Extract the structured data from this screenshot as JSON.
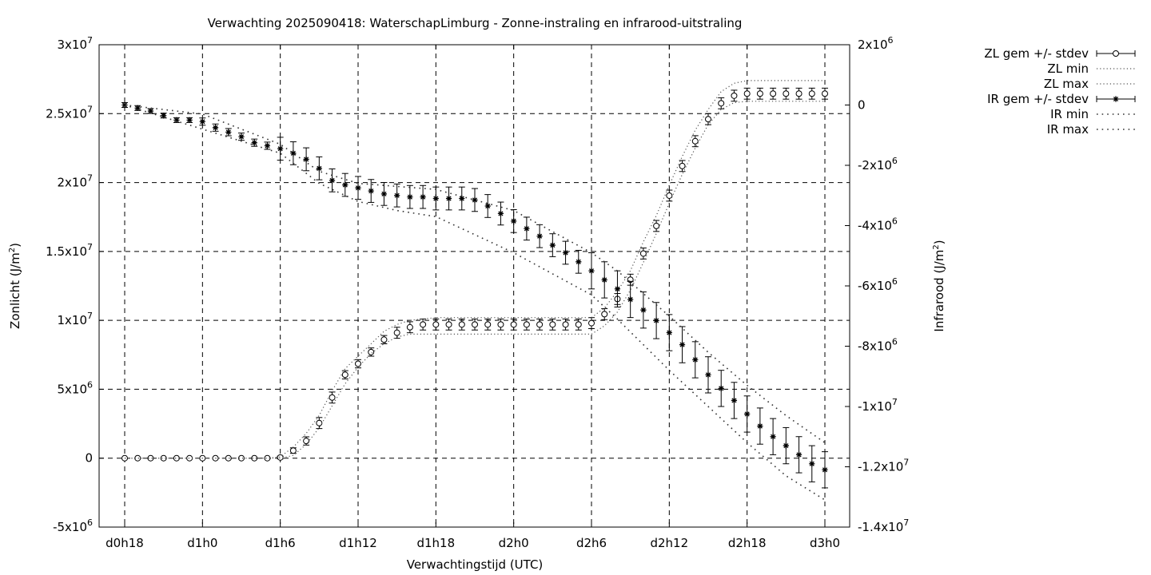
{
  "chart_data": {
    "type": "line",
    "title": "Verwachting 2025090418: WaterschapLimburg - Zonne-instraling en infrarood-uitstraling",
    "xlabel": "Verwachtingstijd (UTC)",
    "ylabel": "Zonlicht (J/m²)",
    "ylabel_main": "Zonlicht (J/m",
    "y2label": "Infrarood (J/m²)",
    "y2label_main": "Infrarood (J/m",
    "unit_sup": "2",
    "unit_close": ")",
    "xlim": [
      0,
      54
    ],
    "ylim": [
      -5000000,
      30000000
    ],
    "y2lim": [
      -14000000,
      2000000
    ],
    "grid": true,
    "legend_position": "outside-top-right",
    "x_ticks": [
      {
        "x": 0,
        "label": "d0h18"
      },
      {
        "x": 6,
        "label": "d1h0"
      },
      {
        "x": 12,
        "label": "d1h6"
      },
      {
        "x": 18,
        "label": "d1h12"
      },
      {
        "x": 24,
        "label": "d1h18"
      },
      {
        "x": 30,
        "label": "d2h0"
      },
      {
        "x": 36,
        "label": "d2h6"
      },
      {
        "x": 42,
        "label": "d2h12"
      },
      {
        "x": 48,
        "label": "d2h18"
      },
      {
        "x": 54,
        "label": "d3h0"
      }
    ],
    "y_ticks": [
      {
        "v": 30000000,
        "base": "3x10",
        "exp": "7"
      },
      {
        "v": 25000000,
        "base": "2.5x10",
        "exp": "7"
      },
      {
        "v": 20000000,
        "base": "2x10",
        "exp": "7"
      },
      {
        "v": 15000000,
        "base": "1.5x10",
        "exp": "7"
      },
      {
        "v": 10000000,
        "base": "1x10",
        "exp": "7"
      },
      {
        "v": 5000000,
        "base": "5x10",
        "exp": "6"
      },
      {
        "v": 0,
        "base": "0",
        "exp": ""
      },
      {
        "v": -5000000,
        "base": "-5x10",
        "exp": "6"
      }
    ],
    "y2_ticks": [
      {
        "v": 2000000,
        "base": "2x10",
        "exp": "6"
      },
      {
        "v": 0,
        "base": "0",
        "exp": ""
      },
      {
        "v": -2000000,
        "base": "-2x10",
        "exp": "6"
      },
      {
        "v": -4000000,
        "base": "-4x10",
        "exp": "6"
      },
      {
        "v": -6000000,
        "base": "-6x10",
        "exp": "6"
      },
      {
        "v": -8000000,
        "base": "-8x10",
        "exp": "6"
      },
      {
        "v": -10000000,
        "base": "-1x10",
        "exp": "7"
      },
      {
        "v": -12000000,
        "base": "-1.2x10",
        "exp": "7"
      },
      {
        "v": -14000000,
        "base": "-1.4x10",
        "exp": "7"
      }
    ],
    "series": [
      {
        "name": "ZL gem +/- stdev",
        "axis": "y",
        "marker": "circle",
        "x": [
          0,
          1,
          2,
          3,
          4,
          5,
          6,
          7,
          8,
          9,
          10,
          11,
          12,
          13,
          14,
          15,
          16,
          17,
          18,
          19,
          20,
          21,
          22,
          23,
          24,
          25,
          26,
          27,
          28,
          29,
          30,
          31,
          32,
          33,
          34,
          35,
          36,
          37,
          38,
          39,
          40,
          41,
          42,
          43,
          44,
          45,
          46,
          47,
          48,
          49,
          50,
          51,
          52,
          53,
          54
        ],
        "y": [
          0,
          0,
          0,
          0,
          0,
          0,
          0,
          0,
          0,
          0,
          0,
          0,
          50000,
          550000,
          1250000,
          2550000,
          4400000,
          6050000,
          6850000,
          7700000,
          8600000,
          9100000,
          9500000,
          9700000,
          9700000,
          9700000,
          9700000,
          9700000,
          9700000,
          9700000,
          9700000,
          9700000,
          9700000,
          9700000,
          9700000,
          9700000,
          9800000,
          10450000,
          11550000,
          12950000,
          14850000,
          16850000,
          19050000,
          21200000,
          23000000,
          24600000,
          25750000,
          26300000,
          26450000,
          26450000,
          26450000,
          26450000,
          26450000,
          26450000,
          26450000
        ],
        "stdev": [
          0,
          0,
          0,
          0,
          0,
          0,
          0,
          0,
          0,
          0,
          0,
          0,
          100000,
          200000,
          300000,
          400000,
          400000,
          300000,
          300000,
          300000,
          300000,
          400000,
          400000,
          400000,
          400000,
          400000,
          400000,
          400000,
          400000,
          400000,
          400000,
          400000,
          400000,
          400000,
          400000,
          400000,
          400000,
          400000,
          400000,
          400000,
          400000,
          400000,
          400000,
          400000,
          400000,
          400000,
          400000,
          400000,
          400000,
          400000,
          400000,
          400000,
          400000,
          400000,
          400000
        ]
      },
      {
        "name": "ZL min",
        "axis": "y",
        "style": "dotted",
        "x": [
          0,
          6,
          11,
          12,
          13,
          14,
          15,
          16,
          17,
          18,
          19,
          20,
          21,
          22,
          24,
          30,
          36,
          37,
          38,
          39,
          40,
          41,
          42,
          43,
          44,
          45,
          46,
          47,
          48,
          54
        ],
        "y": [
          0,
          0,
          0,
          0,
          200000,
          1000000,
          2200000,
          3800000,
          5400000,
          6600000,
          7600000,
          8300000,
          8800000,
          9000000,
          9000000,
          9000000,
          9000000,
          9600000,
          10600000,
          12200000,
          14200000,
          16300000,
          18500000,
          20600000,
          22500000,
          24200000,
          25300000,
          25800000,
          25900000,
          25900000
        ]
      },
      {
        "name": "ZL max",
        "axis": "y",
        "style": "dotted",
        "x": [
          0,
          6,
          11,
          12,
          13,
          14,
          15,
          16,
          17,
          18,
          19,
          20,
          21,
          22,
          24,
          30,
          36,
          37,
          38,
          39,
          40,
          41,
          42,
          43,
          44,
          45,
          46,
          47,
          48,
          54
        ],
        "y": [
          0,
          0,
          0,
          100000,
          800000,
          1800000,
          3100000,
          4900000,
          6500000,
          7400000,
          8300000,
          9200000,
          9700000,
          10000000,
          10200000,
          10200000,
          10200000,
          10900000,
          12100000,
          13600000,
          15700000,
          17600000,
          19800000,
          21900000,
          23800000,
          25300000,
          26600000,
          27200000,
          27400000,
          27400000
        ]
      },
      {
        "name": "IR gem +/- stdev",
        "axis": "y2",
        "marker": "star",
        "x": [
          0,
          1,
          2,
          3,
          4,
          5,
          6,
          7,
          8,
          9,
          10,
          11,
          12,
          13,
          14,
          15,
          16,
          17,
          18,
          19,
          20,
          21,
          22,
          23,
          24,
          25,
          26,
          27,
          28,
          29,
          30,
          31,
          32,
          33,
          34,
          35,
          36,
          37,
          38,
          39,
          40,
          41,
          42,
          43,
          44,
          45,
          46,
          47,
          48,
          49,
          50,
          51,
          52,
          53,
          54
        ],
        "y": [
          0,
          -100000,
          -200000,
          -350000,
          -500000,
          -500000,
          -550000,
          -750000,
          -900000,
          -1050000,
          -1250000,
          -1350000,
          -1450000,
          -1600000,
          -1800000,
          -2100000,
          -2500000,
          -2650000,
          -2750000,
          -2850000,
          -2950000,
          -3000000,
          -3050000,
          -3050000,
          -3100000,
          -3100000,
          -3100000,
          -3150000,
          -3350000,
          -3600000,
          -3850000,
          -4100000,
          -4350000,
          -4650000,
          -4900000,
          -5200000,
          -5500000,
          -5800000,
          -6100000,
          -6450000,
          -6800000,
          -7150000,
          -7550000,
          -7950000,
          -8450000,
          -8950000,
          -9400000,
          -9800000,
          -10250000,
          -10650000,
          -11000000,
          -11300000,
          -11600000,
          -11900000,
          -12100000
        ]
      },
      {
        "name": "IR min",
        "axis": "y2",
        "style": "dotted",
        "x": [
          0,
          6,
          12,
          15,
          18,
          21,
          24,
          30,
          36,
          38,
          42,
          45,
          48,
          51,
          54
        ],
        "y": [
          0,
          -800000,
          -1600000,
          -2600000,
          -3200000,
          -3500000,
          -3700000,
          -4900000,
          -6300000,
          -7100000,
          -8800000,
          -10000000,
          -11200000,
          -12300000,
          -13100000
        ]
      },
      {
        "name": "IR max",
        "axis": "y2",
        "style": "dotted",
        "x": [
          0,
          6,
          12,
          15,
          18,
          21,
          24,
          30,
          36,
          38,
          42,
          45,
          48,
          51,
          54
        ],
        "y": [
          0,
          -300000,
          -1300000,
          -2200000,
          -2600000,
          -2700000,
          -2800000,
          -3500000,
          -4900000,
          -5500000,
          -7000000,
          -8200000,
          -9300000,
          -10300000,
          -11200000
        ]
      }
    ]
  }
}
